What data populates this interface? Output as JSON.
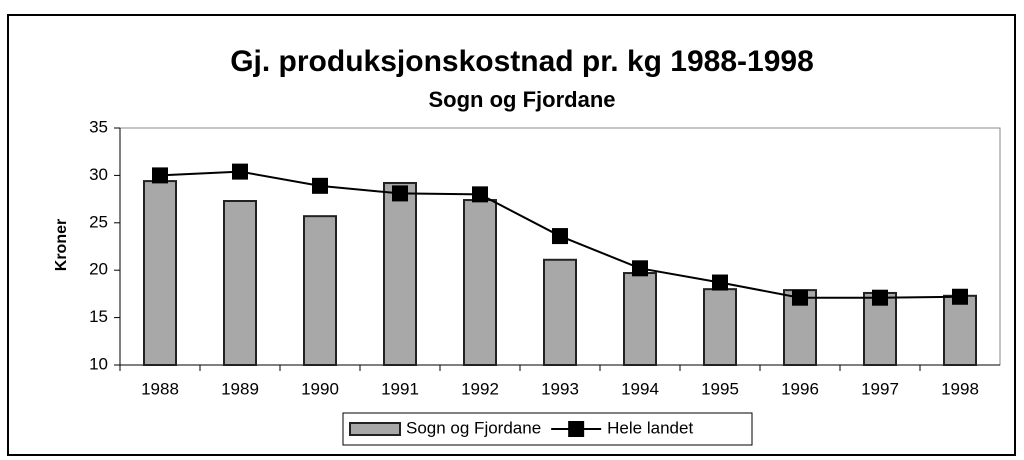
{
  "chart_data": {
    "type": "bar",
    "title": "Gj. produksjonskostnad pr. kg 1988-1998",
    "subtitle": "Sogn og Fjordane",
    "y_label": "Kroner",
    "categories": [
      "1988",
      "1989",
      "1990",
      "1991",
      "1992",
      "1993",
      "1994",
      "1995",
      "1996",
      "1997",
      "1998"
    ],
    "series": [
      {
        "name": "Sogn og Fjordane",
        "type": "bar",
        "color": "#a8a8a8",
        "values": [
          29.4,
          27.3,
          25.7,
          29.2,
          27.4,
          21.1,
          19.7,
          18.0,
          17.9,
          17.6,
          17.3
        ]
      },
      {
        "name": "Hele landet",
        "type": "line",
        "color": "#000000",
        "values": [
          30.0,
          30.4,
          28.9,
          28.1,
          28.0,
          23.6,
          20.2,
          18.7,
          17.1,
          17.1,
          17.2
        ]
      }
    ],
    "ylim": [
      10,
      35
    ],
    "yticks": [
      10,
      15,
      20,
      25,
      30,
      35
    ],
    "legend": "bottom"
  }
}
